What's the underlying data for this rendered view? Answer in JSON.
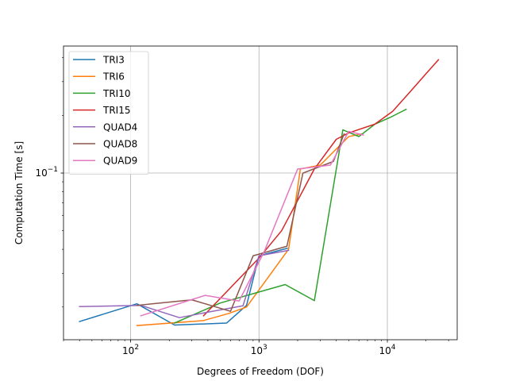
{
  "chart_data": {
    "type": "line",
    "title": "",
    "xlabel": "Degrees of Freedom (DOF)",
    "ylabel": "Computation Time [s]",
    "xscale": "log",
    "yscale": "log",
    "xlim": [
      30,
      35000
    ],
    "ylim": [
      0.0135,
      0.46
    ],
    "x_ticks": [
      {
        "value": 100,
        "base": "10",
        "exp": "2"
      },
      {
        "value": 1000,
        "base": "10",
        "exp": "3"
      },
      {
        "value": 10000,
        "base": "10",
        "exp": "4"
      }
    ],
    "y_ticks": [
      {
        "value": 0.1,
        "base": "10",
        "exp": "−1"
      }
    ],
    "grid": true,
    "legend_position": "upper-left",
    "series": [
      {
        "name": "TRI3",
        "color": "#1f77b4",
        "x": [
          40,
          112,
          220,
          560,
          800,
          1000,
          1660
        ],
        "y": [
          0.0168,
          0.0208,
          0.0161,
          0.0165,
          0.0204,
          0.037,
          0.0405
        ]
      },
      {
        "name": "TRI6",
        "color": "#ff7f0e",
        "x": [
          112,
          370,
          580,
          800,
          1700,
          2100,
          3000,
          5000,
          6300
        ],
        "y": [
          0.016,
          0.017,
          0.0185,
          0.02,
          0.04,
          0.105,
          0.11,
          0.155,
          0.16
        ]
      },
      {
        "name": "TRI10",
        "color": "#2ca02c",
        "x": [
          220,
          500,
          1600,
          2700,
          4500,
          6000,
          8000,
          10500,
          14000
        ],
        "y": [
          0.0165,
          0.021,
          0.0262,
          0.0216,
          0.168,
          0.155,
          0.18,
          0.195,
          0.215
        ]
      },
      {
        "name": "TRI15",
        "color": "#d62728",
        "x": [
          370,
          1000,
          1500,
          2700,
          4000,
          5000,
          8000,
          11000,
          15000,
          20000,
          25000
        ],
        "y": [
          0.018,
          0.036,
          0.05,
          0.105,
          0.15,
          0.162,
          0.18,
          0.21,
          0.265,
          0.33,
          0.39
        ]
      },
      {
        "name": "QUAD4",
        "color": "#9467bd",
        "x": [
          40,
          120,
          240,
          400,
          750,
          1000,
          1700
        ],
        "y": [
          0.0201,
          0.0204,
          0.0176,
          0.0188,
          0.0203,
          0.037,
          0.0395
        ]
      },
      {
        "name": "QUAD8",
        "color": "#8c564b",
        "x": [
          112,
          300,
          600,
          900,
          1650,
          2200,
          3800,
          4600
        ],
        "y": [
          0.0204,
          0.0218,
          0.019,
          0.037,
          0.0415,
          0.1,
          0.115,
          0.16
        ]
      },
      {
        "name": "QUAD9",
        "color": "#e377c2",
        "x": [
          120,
          380,
          700,
          1100,
          2000,
          3600,
          5000,
          6500
        ],
        "y": [
          0.018,
          0.023,
          0.0215,
          0.039,
          0.105,
          0.11,
          0.165,
          0.158
        ]
      }
    ]
  }
}
